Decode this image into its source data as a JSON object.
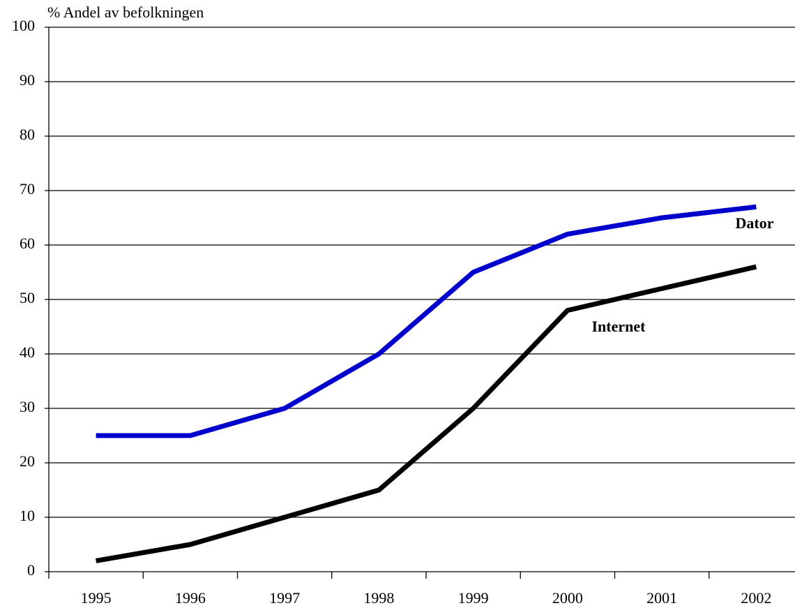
{
  "chart_data": {
    "type": "line",
    "y_label": "% Andel av befolkningen",
    "categories": [
      "1995",
      "1996",
      "1997",
      "1998",
      "1999",
      "2000",
      "2001",
      "2002"
    ],
    "series": [
      {
        "name": "Dator",
        "color": "#0000cc",
        "values": [
          25,
          25,
          30,
          40,
          55,
          62,
          65,
          67
        ]
      },
      {
        "name": "Internet",
        "color": "#000000",
        "values": [
          2,
          5,
          10,
          15,
          30,
          48,
          52,
          56
        ]
      }
    ],
    "ylim": [
      0,
      100
    ],
    "yticks": [
      0,
      10,
      20,
      30,
      40,
      50,
      60,
      70,
      80,
      90,
      100
    ],
    "grid": true
  }
}
